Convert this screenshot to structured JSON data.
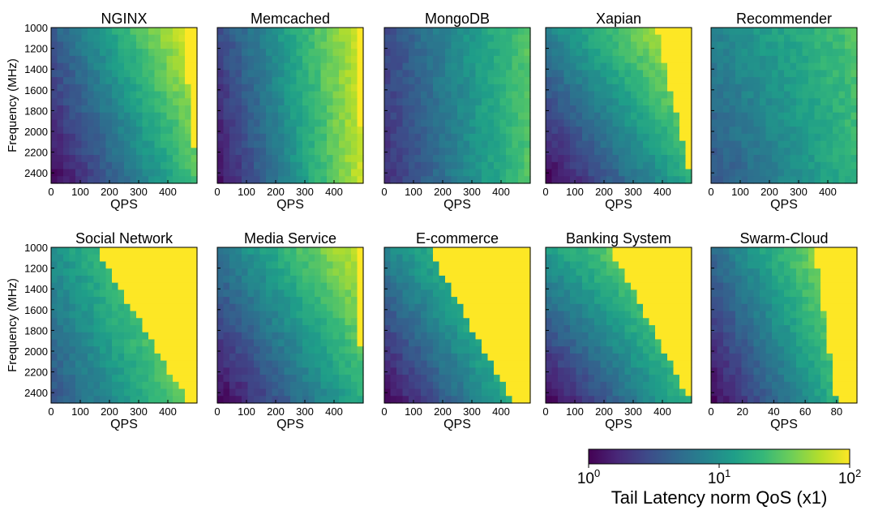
{
  "figure": {
    "ylabel": "Frequency (MHz)",
    "xlabel": "QPS"
  },
  "colorbar": {
    "label": "Tail Latency norm QoS (x1)",
    "scale": "log",
    "ticks": [
      {
        "base": "10",
        "exp": "0"
      },
      {
        "base": "10",
        "exp": "1"
      },
      {
        "base": "10",
        "exp": "2"
      }
    ],
    "colormap": "viridis",
    "colors": [
      "#440154",
      "#482878",
      "#3e4a89",
      "#31688e",
      "#26828e",
      "#1f9e89",
      "#35b779",
      "#6ece58",
      "#b5de2b",
      "#fde725"
    ]
  },
  "chart_data": [
    {
      "type": "heatmap",
      "title": "NGINX",
      "xlim": [
        0,
        500
      ],
      "xticks": [
        0,
        100,
        200,
        300,
        400
      ],
      "ylim": [
        1000,
        2500
      ],
      "yticks": [
        1000,
        1200,
        1400,
        1600,
        1800,
        2000,
        2200,
        2400
      ],
      "log10_latency_corners": {
        "top_left": 0.6,
        "top_right": 2.0,
        "bottom_left": 0.0,
        "bottom_right": 1.4
      },
      "frontier": {
        "top_x": 450,
        "bottom_x": 500
      }
    },
    {
      "type": "heatmap",
      "title": "Memcached",
      "xlim": [
        0,
        500
      ],
      "xticks": [
        0,
        100,
        200,
        300,
        400
      ],
      "ylim": [
        1000,
        2500
      ],
      "yticks": [
        1000,
        1200,
        1400,
        1600,
        1800,
        2000,
        2200,
        2400
      ],
      "log10_latency_corners": {
        "top_left": 0.45,
        "top_right": 1.9,
        "bottom_left": 0.05,
        "bottom_right": 1.85
      },
      "frontier": {
        "top_x": 470,
        "bottom_x": 500
      }
    },
    {
      "type": "heatmap",
      "title": "MongoDB",
      "xlim": [
        0,
        500
      ],
      "xticks": [
        0,
        100,
        200,
        300,
        400
      ],
      "ylim": [
        1000,
        2500
      ],
      "yticks": [
        1000,
        1200,
        1400,
        1600,
        1800,
        2000,
        2200,
        2400
      ],
      "log10_latency_corners": {
        "top_left": 0.45,
        "top_right": 1.5,
        "bottom_left": 0.25,
        "bottom_right": 1.45
      },
      "frontier": {
        "top_x": 500,
        "bottom_x": 500
      }
    },
    {
      "type": "heatmap",
      "title": "Xapian",
      "xlim": [
        0,
        500
      ],
      "xticks": [
        0,
        100,
        200,
        300,
        400
      ],
      "ylim": [
        1000,
        2500
      ],
      "yticks": [
        1000,
        1200,
        1400,
        1600,
        1800,
        2000,
        2200,
        2400
      ],
      "log10_latency_corners": {
        "top_left": 0.9,
        "top_right": 2.0,
        "bottom_left": 0.0,
        "bottom_right": 1.25
      },
      "frontier": {
        "top_x": 380,
        "bottom_x": 500
      }
    },
    {
      "type": "heatmap",
      "title": "Recommender",
      "xlim": [
        0,
        500
      ],
      "xticks": [
        0,
        100,
        200,
        300,
        400
      ],
      "ylim": [
        1000,
        2500
      ],
      "yticks": [
        1000,
        1200,
        1400,
        1600,
        1800,
        2000,
        2200,
        2400
      ],
      "log10_latency_corners": {
        "top_left": 0.9,
        "top_right": 1.45,
        "bottom_left": 0.5,
        "bottom_right": 1.3
      },
      "frontier": {
        "top_x": 500,
        "bottom_x": 500
      }
    },
    {
      "type": "heatmap",
      "title": "Social Network",
      "xlim": [
        0,
        500
      ],
      "xticks": [
        0,
        100,
        200,
        300,
        400
      ],
      "ylim": [
        1000,
        2500
      ],
      "yticks": [
        1000,
        1200,
        1400,
        1600,
        1800,
        2000,
        2200,
        2400
      ],
      "log10_latency_corners": {
        "top_left": 1.0,
        "top_right": 2.0,
        "bottom_left": 0.5,
        "bottom_right": 1.6
      },
      "frontier": {
        "top_x": 150,
        "bottom_x": 470
      }
    },
    {
      "type": "heatmap",
      "title": "Media Service",
      "xlim": [
        0,
        500
      ],
      "xticks": [
        0,
        100,
        200,
        300,
        400
      ],
      "ylim": [
        1000,
        2500
      ],
      "yticks": [
        1000,
        1200,
        1400,
        1600,
        1800,
        2000,
        2200,
        2400
      ],
      "log10_latency_corners": {
        "top_left": 0.8,
        "top_right": 1.9,
        "bottom_left": 0.0,
        "bottom_right": 1.25
      },
      "frontier": {
        "top_x": 470,
        "bottom_x": 500
      }
    },
    {
      "type": "heatmap",
      "title": "E-commerce",
      "xlim": [
        0,
        500
      ],
      "xticks": [
        0,
        100,
        200,
        300,
        400
      ],
      "ylim": [
        1000,
        2500
      ],
      "yticks": [
        1000,
        1200,
        1400,
        1600,
        1800,
        2000,
        2200,
        2400
      ],
      "log10_latency_corners": {
        "top_left": 0.9,
        "top_right": 2.0,
        "bottom_left": 0.0,
        "bottom_right": 1.4
      },
      "frontier": {
        "top_x": 150,
        "bottom_x": 440
      }
    },
    {
      "type": "heatmap",
      "title": "Banking System",
      "xlim": [
        0,
        500
      ],
      "xticks": [
        0,
        100,
        200,
        300,
        400
      ],
      "ylim": [
        1000,
        2500
      ],
      "yticks": [
        1000,
        1200,
        1400,
        1600,
        1800,
        2000,
        2200,
        2400
      ],
      "log10_latency_corners": {
        "top_left": 1.1,
        "top_right": 2.0,
        "bottom_left": 0.0,
        "bottom_right": 1.3
      },
      "frontier": {
        "top_x": 220,
        "bottom_x": 500
      }
    },
    {
      "type": "heatmap",
      "title": "Swarm-Cloud",
      "xlim": [
        0,
        93
      ],
      "xticks": [
        0,
        20,
        40,
        60,
        80
      ],
      "ylim": [
        1000,
        2500
      ],
      "yticks": [
        1000,
        1200,
        1400,
        1600,
        1800,
        2000,
        2200,
        2400
      ],
      "log10_latency_corners": {
        "top_left": 0.7,
        "top_right": 2.0,
        "bottom_left": 0.0,
        "bottom_right": 1.5
      },
      "frontier": {
        "top_x": 66,
        "bottom_x": 80
      }
    }
  ]
}
